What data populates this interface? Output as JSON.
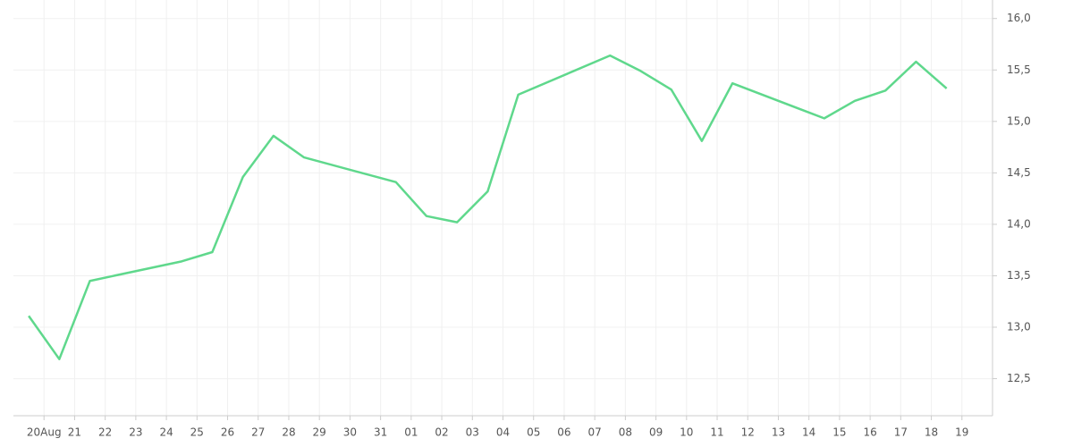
{
  "chart_data": {
    "type": "line",
    "x": [
      -0.5,
      0.5,
      1.5,
      4.5,
      5.5,
      6.5,
      7.5,
      8.5,
      11.5,
      12.5,
      13.5,
      14.5,
      15.5,
      18.5,
      19.5,
      20.5,
      21.5,
      22.5,
      25.5,
      26.5,
      27.5,
      28.5,
      29.5
    ],
    "values": [
      13.11,
      12.69,
      13.45,
      13.64,
      13.73,
      14.46,
      14.86,
      14.65,
      14.41,
      14.08,
      14.02,
      14.32,
      15.26,
      15.64,
      15.49,
      15.31,
      14.81,
      15.37,
      15.03,
      15.2,
      15.3,
      15.58,
      15.32
    ],
    "color": "#5fd88c",
    "xlim": [
      -1,
      31
    ],
    "ylim": [
      12.14,
      16.18
    ],
    "xticks": [
      {
        "value": 0,
        "label": "20Aug"
      },
      {
        "value": 1,
        "label": "21"
      },
      {
        "value": 2,
        "label": "22"
      },
      {
        "value": 3,
        "label": "23"
      },
      {
        "value": 4,
        "label": "24"
      },
      {
        "value": 5,
        "label": "25"
      },
      {
        "value": 6,
        "label": "26"
      },
      {
        "value": 7,
        "label": "27"
      },
      {
        "value": 8,
        "label": "28"
      },
      {
        "value": 9,
        "label": "29"
      },
      {
        "value": 10,
        "label": "30"
      },
      {
        "value": 11,
        "label": "31"
      },
      {
        "value": 12,
        "label": "01"
      },
      {
        "value": 13,
        "label": "02"
      },
      {
        "value": 14,
        "label": "03"
      },
      {
        "value": 15,
        "label": "04"
      },
      {
        "value": 16,
        "label": "05"
      },
      {
        "value": 17,
        "label": "06"
      },
      {
        "value": 18,
        "label": "07"
      },
      {
        "value": 19,
        "label": "08"
      },
      {
        "value": 20,
        "label": "09"
      },
      {
        "value": 21,
        "label": "10"
      },
      {
        "value": 22,
        "label": "11"
      },
      {
        "value": 23,
        "label": "12"
      },
      {
        "value": 24,
        "label": "13"
      },
      {
        "value": 25,
        "label": "14"
      },
      {
        "value": 26,
        "label": "15"
      },
      {
        "value": 27,
        "label": "16"
      },
      {
        "value": 28,
        "label": "17"
      },
      {
        "value": 29,
        "label": "18"
      },
      {
        "value": 30,
        "label": "19"
      }
    ],
    "yticks": [
      {
        "value": 12.5,
        "label": "12,5"
      },
      {
        "value": 13,
        "label": "13,0"
      },
      {
        "value": 13.5,
        "label": "13,5"
      },
      {
        "value": 14,
        "label": "14,0"
      },
      {
        "value": 14.5,
        "label": "14,5"
      },
      {
        "value": 15,
        "label": "15,0"
      },
      {
        "value": 15.5,
        "label": "15,5"
      },
      {
        "value": 16,
        "label": "16,0"
      }
    ],
    "grid": true
  }
}
